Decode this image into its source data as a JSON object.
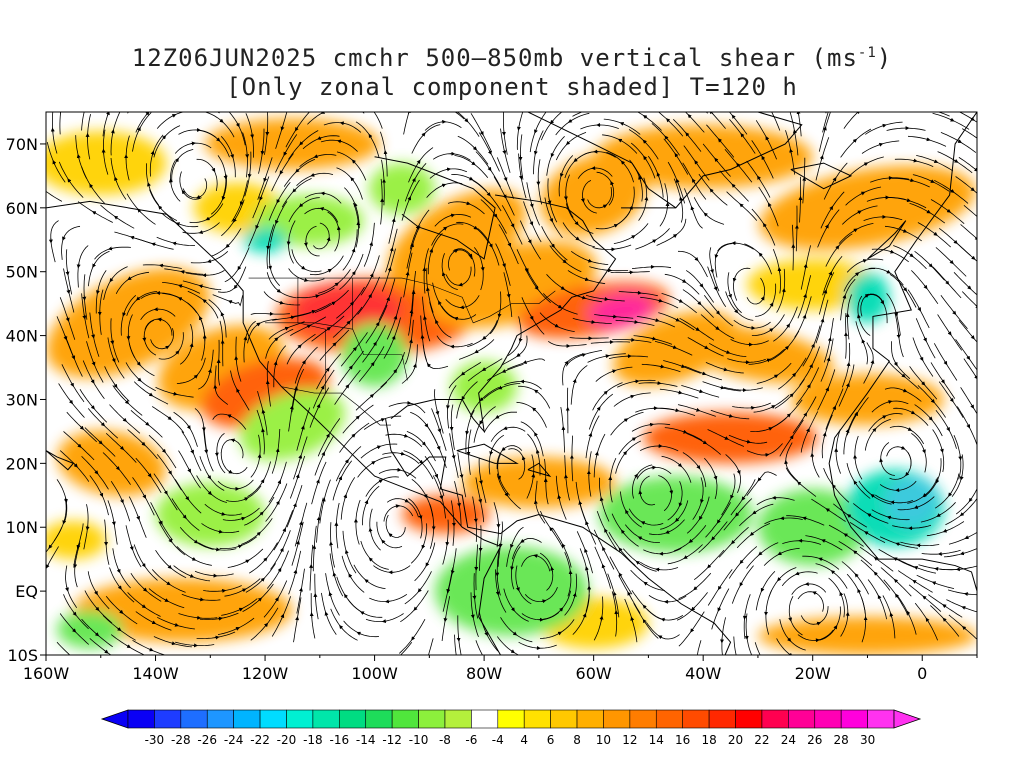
{
  "title": {
    "line1_main": "12Z06JUN2025 cmchr 500–850mb vertical shear (ms",
    "line1_sup": "-1",
    "line1_close": ")",
    "line2": "[Only zonal component shaded] T=120 h"
  },
  "axes": {
    "lon_labels": [
      "160W",
      "140W",
      "120W",
      "100W",
      "80W",
      "60W",
      "40W",
      "20W",
      "0"
    ],
    "lat_labels": [
      "70N",
      "60N",
      "50N",
      "40N",
      "30N",
      "20N",
      "10N",
      "EQ",
      "10S"
    ]
  },
  "colorbar": {
    "labels": [
      "-30",
      "-28",
      "-26",
      "-24",
      "-22",
      "-20",
      "-18",
      "-16",
      "-14",
      "-12",
      "-10",
      "-8",
      "-6",
      "-4",
      "4",
      "6",
      "8",
      "10",
      "12",
      "14",
      "16",
      "18",
      "20",
      "22",
      "24",
      "26",
      "28",
      "30"
    ],
    "colors": [
      "#0a00f5",
      "#1e3cff",
      "#1e6eff",
      "#1e96ff",
      "#00b4ff",
      "#00dcff",
      "#00f0d2",
      "#00e6aa",
      "#00dc82",
      "#1edc5a",
      "#50e63c",
      "#8cf03c",
      "#b4f03c",
      "#ffffff",
      "#ffff00",
      "#ffe100",
      "#ffc800",
      "#ffaf00",
      "#ff9600",
      "#ff7d00",
      "#ff6400",
      "#ff4b00",
      "#ff2800",
      "#ff0000",
      "#ff0050",
      "#ff0096",
      "#ff00b4",
      "#ff00dc",
      "#ff32f0"
    ]
  },
  "map_data": {
    "lon_range": [
      -160,
      10
    ],
    "lat_range": [
      -10,
      75
    ],
    "shading_colors": {
      "orange": "#ffa000",
      "yellow": "#ffd200",
      "red_orange": "#ff5a00",
      "red": "#ff2a2a",
      "magenta": "#ff1e96",
      "green": "#64e650",
      "light_green": "#96f03c",
      "teal": "#00dcb4",
      "cyan": "#32c8dc"
    }
  }
}
